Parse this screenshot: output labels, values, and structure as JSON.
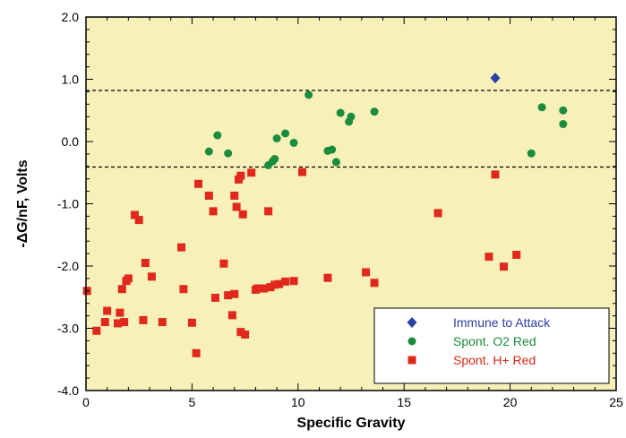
{
  "chart_data": {
    "type": "scatter",
    "xlabel": "Specific Gravity",
    "ylabel": "-ΔG/nF, Volts",
    "xlim": [
      0,
      25
    ],
    "ylim": [
      -4.0,
      2.0
    ],
    "x_ticks": [
      "0",
      "5",
      "10",
      "15",
      "20",
      "25"
    ],
    "x_tick_values": [
      0,
      5,
      10,
      15,
      20,
      25
    ],
    "y_ticks": [
      "2.0",
      "1.0",
      "0.0",
      "-1.0",
      "-2.0",
      "-3.0",
      "-4.0"
    ],
    "y_tick_values": [
      2,
      1,
      0,
      -1,
      -2,
      -3,
      -4
    ],
    "grid": false,
    "background_color": "#f7f0b8",
    "reference_lines": [
      {
        "y": 0.82,
        "style": "dashed"
      },
      {
        "y": -0.41,
        "style": "dashed"
      }
    ],
    "legend_position": "bottom-right",
    "series": [
      {
        "name": "Immune to Attack",
        "marker": "diamond",
        "color": "#2b3fa8",
        "text_color": "#2b3fa8",
        "points": [
          [
            19.3,
            1.02
          ]
        ]
      },
      {
        "name": "Spont. O2 Red",
        "marker": "circle",
        "color": "#1a8c3c",
        "text_color": "#1a8c3c",
        "points": [
          [
            5.8,
            -0.16
          ],
          [
            6.2,
            0.1
          ],
          [
            6.7,
            -0.19
          ],
          [
            8.6,
            -0.38
          ],
          [
            8.8,
            -0.32
          ],
          [
            8.9,
            -0.28
          ],
          [
            9.0,
            0.05
          ],
          [
            9.4,
            0.13
          ],
          [
            9.8,
            -0.02
          ],
          [
            10.5,
            0.75
          ],
          [
            11.4,
            -0.15
          ],
          [
            11.6,
            -0.13
          ],
          [
            11.8,
            -0.33
          ],
          [
            12.0,
            0.46
          ],
          [
            12.4,
            0.32
          ],
          [
            12.5,
            0.4
          ],
          [
            13.6,
            0.48
          ],
          [
            21.0,
            -0.19
          ],
          [
            21.5,
            0.55
          ],
          [
            22.5,
            0.5
          ],
          [
            22.5,
            0.28
          ]
        ]
      },
      {
        "name": "Spont. H+ Red",
        "marker": "square",
        "color": "#e0281c",
        "text_color": "#e0281c",
        "points": [
          [
            0.05,
            -2.4
          ],
          [
            0.5,
            -3.04
          ],
          [
            0.9,
            -2.9
          ],
          [
            1.0,
            -2.72
          ],
          [
            1.5,
            -2.92
          ],
          [
            1.6,
            -2.75
          ],
          [
            1.7,
            -2.37
          ],
          [
            1.8,
            -2.9
          ],
          [
            1.9,
            -2.24
          ],
          [
            2.0,
            -2.2
          ],
          [
            2.3,
            -1.18
          ],
          [
            2.5,
            -1.26
          ],
          [
            2.7,
            -2.87
          ],
          [
            2.8,
            -1.95
          ],
          [
            3.1,
            -2.17
          ],
          [
            3.6,
            -2.9
          ],
          [
            4.5,
            -1.7
          ],
          [
            4.6,
            -2.37
          ],
          [
            5.0,
            -2.91
          ],
          [
            5.2,
            -3.4
          ],
          [
            5.3,
            -0.68
          ],
          [
            5.8,
            -0.87
          ],
          [
            6.0,
            -1.12
          ],
          [
            6.1,
            -2.51
          ],
          [
            6.5,
            -1.96
          ],
          [
            6.7,
            -2.47
          ],
          [
            6.9,
            -2.79
          ],
          [
            7.0,
            -2.45
          ],
          [
            7.0,
            -0.87
          ],
          [
            7.1,
            -1.05
          ],
          [
            7.2,
            -0.61
          ],
          [
            7.3,
            -0.55
          ],
          [
            7.3,
            -3.06
          ],
          [
            7.4,
            -1.17
          ],
          [
            7.5,
            -3.1
          ],
          [
            7.8,
            -0.5
          ],
          [
            8.0,
            -2.38
          ],
          [
            8.1,
            -2.36
          ],
          [
            8.4,
            -2.36
          ],
          [
            8.6,
            -1.12
          ],
          [
            8.7,
            -2.34
          ],
          [
            8.9,
            -2.3
          ],
          [
            9.1,
            -2.29
          ],
          [
            9.4,
            -2.25
          ],
          [
            9.8,
            -2.24
          ],
          [
            10.2,
            -0.49
          ],
          [
            11.4,
            -2.19
          ],
          [
            13.2,
            -2.1
          ],
          [
            13.6,
            -2.27
          ],
          [
            16.6,
            -1.15
          ],
          [
            19.0,
            -1.85
          ],
          [
            19.3,
            -0.53
          ],
          [
            19.7,
            -2.01
          ],
          [
            20.3,
            -1.82
          ]
        ]
      }
    ]
  }
}
